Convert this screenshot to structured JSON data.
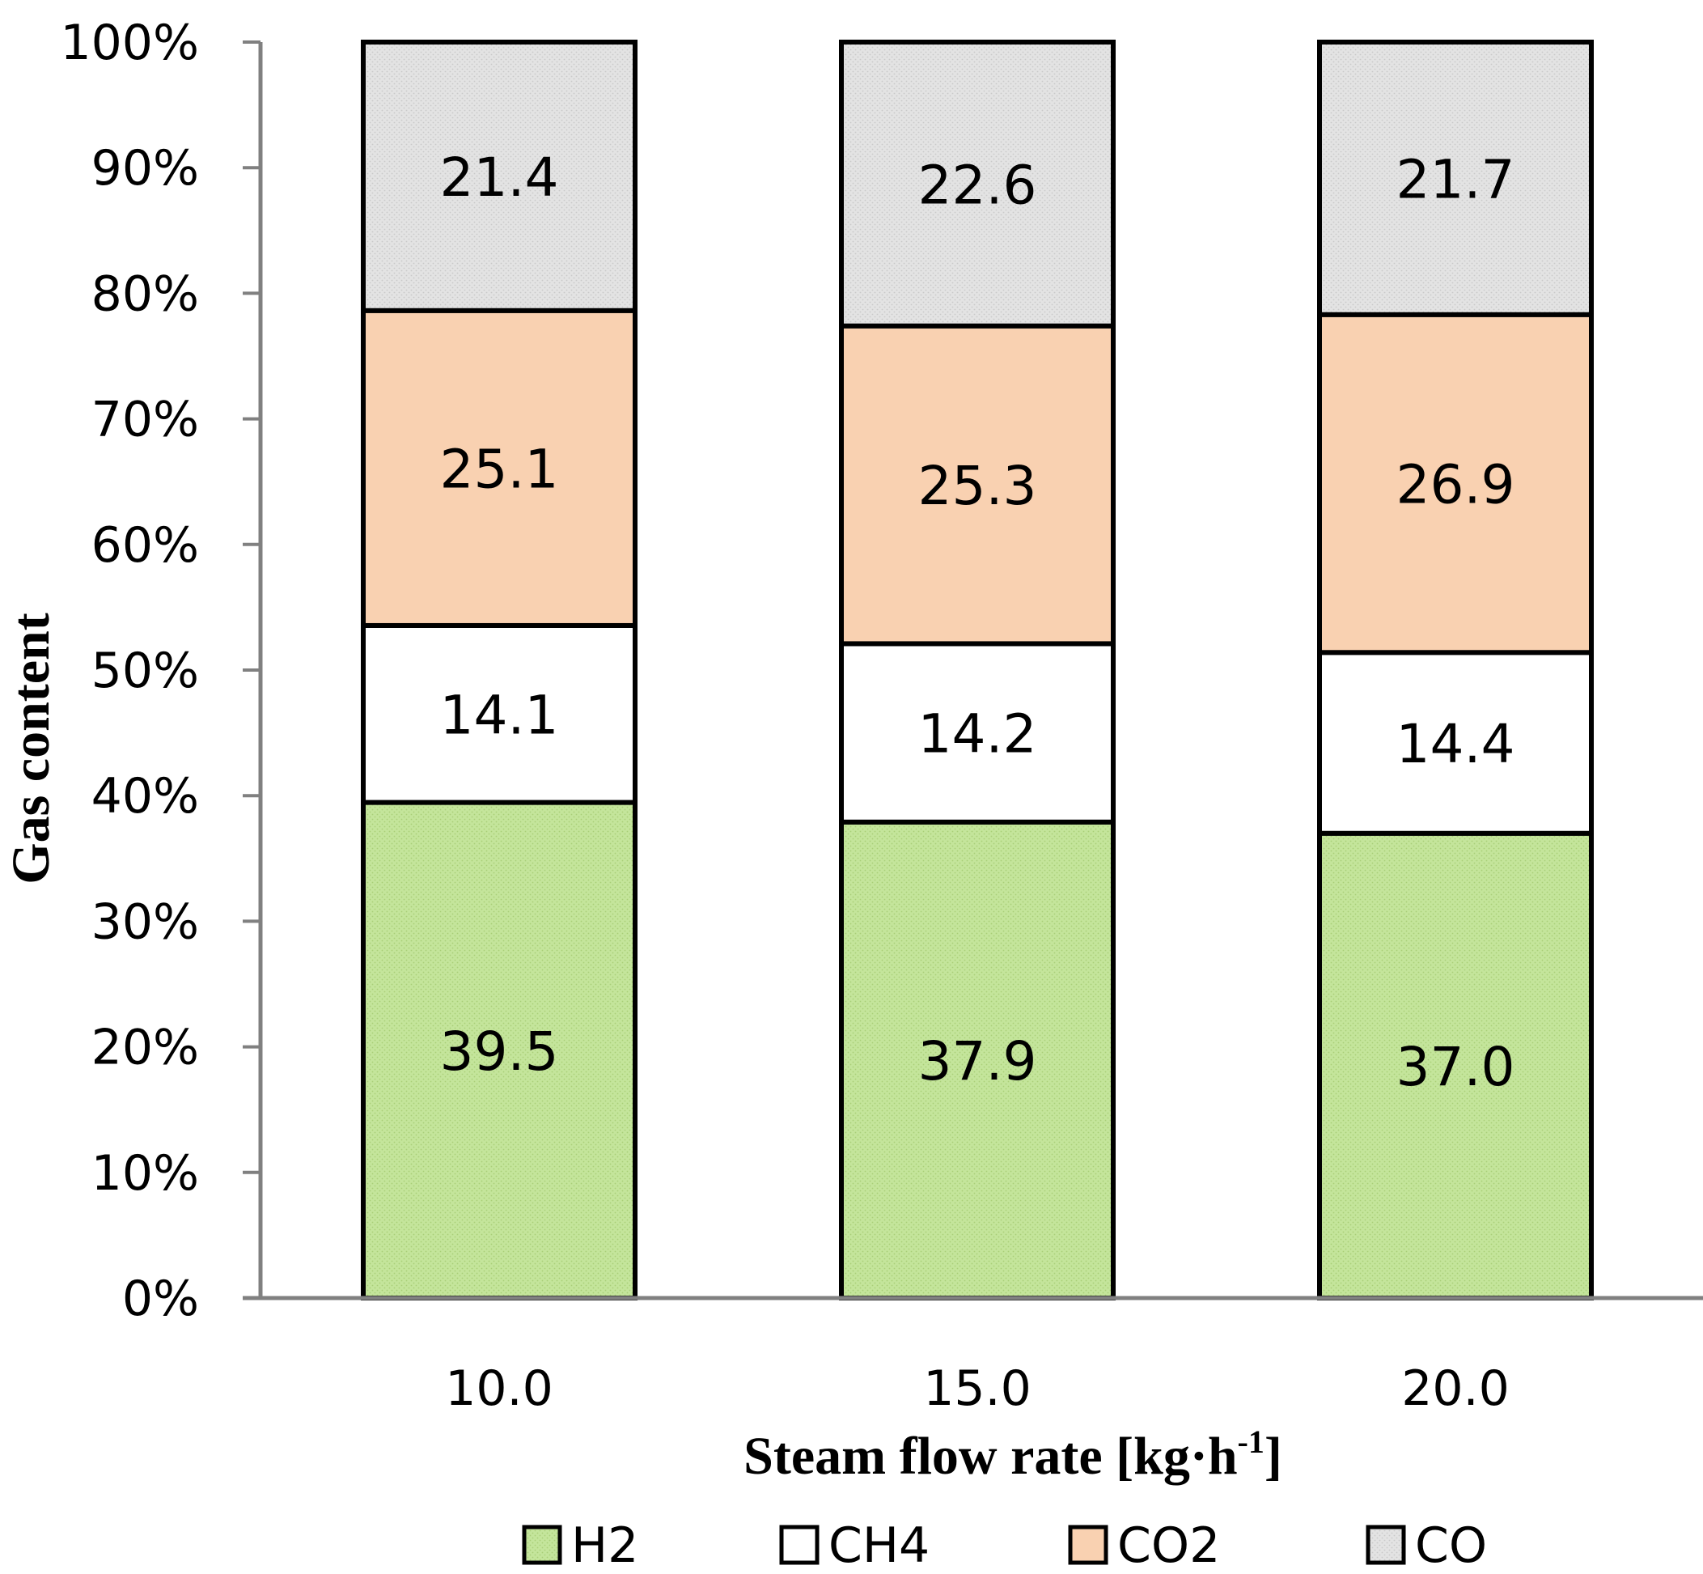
{
  "chart_data": {
    "type": "bar",
    "stacked": true,
    "percent_stacked": true,
    "categories": [
      "10.0",
      "15.0",
      "20.0"
    ],
    "series": [
      {
        "name": "H2",
        "values": [
          39.5,
          37.9,
          37.0
        ],
        "color": "#c4e59b",
        "label_values": [
          "39.5",
          "37.9",
          "37.0"
        ]
      },
      {
        "name": "CH4",
        "values": [
          14.1,
          14.2,
          14.4
        ],
        "color": "#ffffff",
        "label_values": [
          "14.1",
          "14.2",
          "14.4"
        ]
      },
      {
        "name": "CO2",
        "values": [
          25.1,
          25.3,
          26.9
        ],
        "color": "#f9d1b1",
        "label_values": [
          "25.1",
          "25.3",
          "26.9"
        ]
      },
      {
        "name": "CO",
        "values": [
          21.4,
          22.6,
          21.7
        ],
        "color": "#e3e3e3",
        "label_values": [
          "21.4",
          "22.6",
          "21.7"
        ]
      }
    ],
    "yticks": [
      "0%",
      "10%",
      "20%",
      "30%",
      "40%",
      "50%",
      "60%",
      "70%",
      "80%",
      "90%",
      "100%"
    ],
    "ylim": [
      0,
      100
    ],
    "xlabel": "Steam flow rate [kg·h",
    "xlabel_superscript": "-1",
    "xlabel_suffix": "]",
    "ylabel": "Gas content",
    "legend_position": "bottom",
    "grid": false,
    "colors": {
      "axis": "#808080",
      "bar_outline": "#000000"
    }
  }
}
